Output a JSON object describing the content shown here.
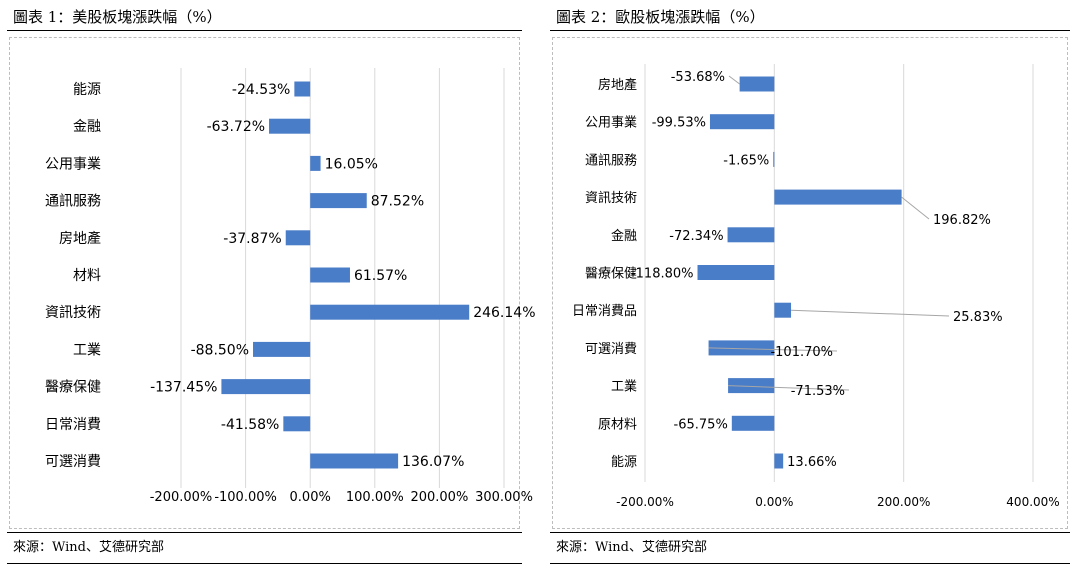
{
  "panels": [
    {
      "title": "圖表 1：美股板塊漲跌幅（%）",
      "source": "來源：Wind、艾德研究部"
    },
    {
      "title": "圖表 2：歐股板塊漲跌幅（%）",
      "source": "來源：Wind、艾德研究部"
    }
  ],
  "chart_data": [
    {
      "type": "bar",
      "orientation": "horizontal",
      "categories": [
        "能源",
        "金融",
        "公用事業",
        "通訊服務",
        "房地產",
        "材料",
        "資訊技術",
        "工業",
        "醫療保健",
        "日常消費",
        "可選消費"
      ],
      "values": [
        -24.53,
        -63.72,
        16.05,
        87.52,
        -37.87,
        61.57,
        246.14,
        -88.5,
        -137.45,
        -41.58,
        136.07
      ],
      "data_labels": [
        "-24.53%",
        "-63.72%",
        "16.05%",
        "87.52%",
        "-37.87%",
        "61.57%",
        "246.14%",
        "-88.50%",
        "-137.45%",
        "-41.58%",
        "136.07%"
      ],
      "xlim": [
        -200,
        300
      ],
      "x_ticks": [
        -200,
        -100,
        0,
        100,
        200,
        300
      ],
      "x_tick_labels": [
        "-200.00%",
        "-100.00%",
        "0.00%",
        "100.00%",
        "200.00%",
        "300.00%"
      ],
      "grid": "vertical",
      "bar_color": "#4A7DC8"
    },
    {
      "type": "bar",
      "orientation": "horizontal",
      "categories": [
        "房地產",
        "公用事業",
        "通訊服務",
        "資訊技術",
        "金融",
        "醫療保健",
        "日常消費品",
        "可選消費",
        "工業",
        "原材料",
        "能源"
      ],
      "values": [
        -53.68,
        -99.53,
        -1.65,
        196.82,
        -72.34,
        -118.8,
        25.83,
        -101.7,
        -71.53,
        -65.75,
        13.66
      ],
      "data_labels": [
        "-53.68%",
        "-99.53%",
        "-1.65%",
        "196.82%",
        "-72.34%",
        "-118.80%",
        "25.83%",
        "-101.70%",
        "-71.53%",
        "-65.75%",
        "13.66%"
      ],
      "xlim": [
        -200,
        400
      ],
      "x_ticks": [
        -200,
        0,
        200,
        400
      ],
      "x_tick_labels": [
        "-200.00%",
        "0.00%",
        "200.00%",
        "400.00%"
      ],
      "grid": "vertical",
      "bar_color": "#4A7DC8"
    }
  ]
}
